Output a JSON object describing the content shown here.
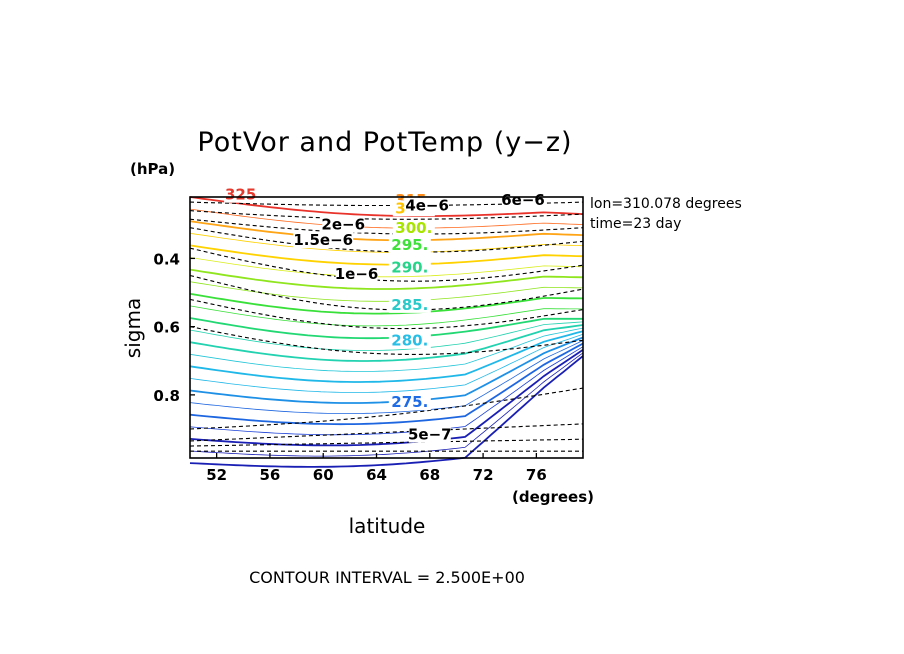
{
  "chart_data": {
    "type": "contour",
    "title": "PotVor and PotTemp (y−z)",
    "xlabel": "latitude",
    "ylabel": "sigma",
    "x_unit_label": "(degrees)",
    "y_unit_label": "(hPa)",
    "xlim": [
      50,
      79.5
    ],
    "ylim": [
      0.22,
      0.985
    ],
    "y_inverted": true,
    "x_ticks": [
      "52",
      "56",
      "60",
      "64",
      "68",
      "72",
      "76"
    ],
    "y_ticks": [
      "0.4",
      "0.6",
      "0.8"
    ],
    "info_lines": [
      "lon=310.078 degrees",
      "time=23 day"
    ],
    "footer": "CONTOUR INTERVAL = 2.500E+00",
    "series": [
      {
        "name": "PotTemp",
        "style": "solid",
        "contour_interval": 2.5,
        "levels_range": [
          270,
          325
        ],
        "labels": [
          {
            "text": "325",
            "color": "#e63a2e",
            "at": [
              53.8,
              0.222
            ]
          },
          {
            "text": "315.",
            "color": "#ff8c1a",
            "at": [
              66.8,
              0.238
            ]
          },
          {
            "text": "310.",
            "color": "#ffc400",
            "at": [
              66.8,
              0.262
            ]
          },
          {
            "text": "300.",
            "color": "#a8e400",
            "at": [
              66.8,
              0.32
            ]
          },
          {
            "text": "295.",
            "color": "#3ee03a",
            "at": [
              66.5,
              0.37
            ]
          },
          {
            "text": "290.",
            "color": "#27d58a",
            "at": [
              66.5,
              0.435
            ]
          },
          {
            "text": "285.",
            "color": "#27c9c9",
            "at": [
              66.5,
              0.545
            ]
          },
          {
            "text": "280.",
            "color": "#27bfe6",
            "at": [
              66.5,
              0.65
            ]
          },
          {
            "text": "275.",
            "color": "#1e6be6",
            "at": [
              66.5,
              0.83
            ]
          }
        ]
      },
      {
        "name": "PotVor",
        "style": "dashed",
        "labels": [
          {
            "text": "4e−6",
            "at": [
              67.8,
              0.254
            ]
          },
          {
            "text": "6e−6",
            "at": [
              75,
              0.237
            ]
          },
          {
            "text": "2e−6",
            "at": [
              61.5,
              0.31
            ]
          },
          {
            "text": "1.5e−6",
            "at": [
              60,
              0.355
            ]
          },
          {
            "text": "1e−6",
            "at": [
              62.5,
              0.455
            ]
          },
          {
            "text": "5e−7",
            "at": [
              68,
              0.925
            ]
          }
        ]
      }
    ]
  }
}
